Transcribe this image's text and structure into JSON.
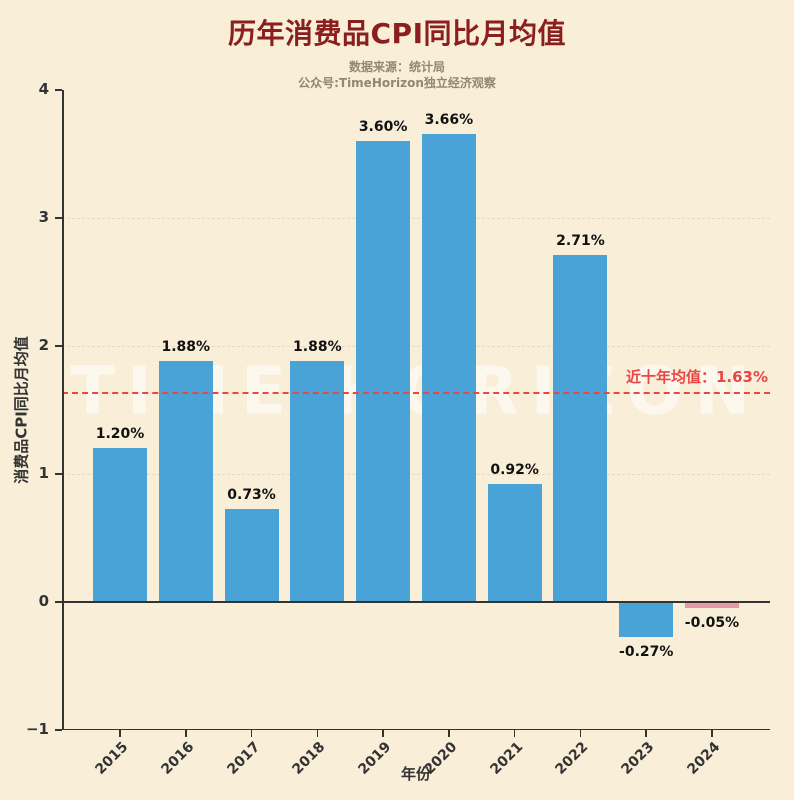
{
  "header": {
    "title": "历年消费品CPI同比月均值",
    "source": "数据来源：统计局",
    "channel": "公众号:TimeHorizon独立经济观察",
    "watermark": "TIME HORIZON"
  },
  "colors": {
    "background": "#f9efd8",
    "title": "#8b1e1e",
    "subtitle": "#8e8874",
    "axis": "#333333",
    "value_label": "#111111",
    "bar": "#4aa3d7",
    "bar_highlight": "#e799a4",
    "mean_line": "#e94747",
    "watermark": "rgba(255,255,255,0.55)"
  },
  "chart_data": {
    "type": "bar",
    "title": "历年消费品CPI同比月均值",
    "categories": [
      "2015",
      "2016",
      "2017",
      "2018",
      "2019",
      "2020",
      "2021",
      "2022",
      "2023",
      "2024"
    ],
    "values": [
      1.2,
      1.88,
      0.73,
      1.88,
      3.6,
      3.66,
      0.92,
      2.71,
      -0.27,
      -0.05
    ],
    "value_labels": [
      "1.20%",
      "1.88%",
      "0.73%",
      "1.88%",
      "3.60%",
      "3.66%",
      "0.92%",
      "2.71%",
      "-0.27%",
      "-0.05%"
    ],
    "bar_colors": [
      "#4aa3d7",
      "#4aa3d7",
      "#4aa3d7",
      "#4aa3d7",
      "#4aa3d7",
      "#4aa3d7",
      "#4aa3d7",
      "#4aa3d7",
      "#4aa3d7",
      "#e799a4"
    ],
    "xlabel": "年份",
    "ylabel": "消费品CPI同比月均值",
    "ylim": [
      -1,
      4
    ],
    "yticks": [
      4,
      3,
      2,
      1,
      0,
      -1
    ],
    "ytick_labels": [
      "4",
      "3",
      "2",
      "1",
      "0",
      "−1"
    ],
    "grid": "faint horizontal dashed",
    "legend": "none",
    "mean_line": {
      "value": 1.63,
      "label": "近十年均值：1.63%"
    }
  }
}
